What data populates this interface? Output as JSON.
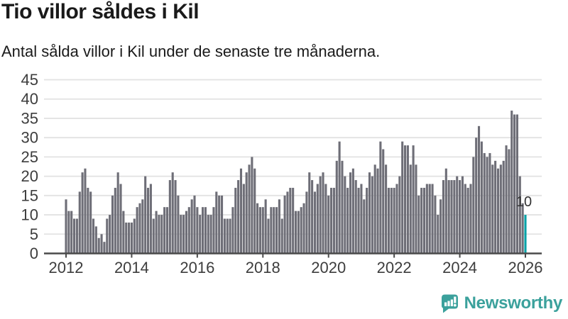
{
  "header": {
    "title": "Tio villor såldes i Kil",
    "subtitle": "Antal sålda villor i Kil under de senaste tre månaderna."
  },
  "chart_data": {
    "type": "bar",
    "title": "Tio villor såldes i Kil",
    "subtitle": "Antal sålda villor i Kil under de senaste tre månaderna.",
    "xlabel": "",
    "ylabel": "",
    "ylim": [
      0,
      45
    ],
    "grid": "horizontal",
    "x_start": "2012-01",
    "x_end": "2026-01",
    "frequency": "monthly",
    "yticks": [
      0,
      5,
      10,
      15,
      20,
      25,
      30,
      35,
      40,
      45
    ],
    "xticks": [
      "2012",
      "2014",
      "2016",
      "2018",
      "2020",
      "2022",
      "2024",
      "2026"
    ],
    "bar_color": "#6e6e77",
    "values": [
      14,
      11,
      11,
      9,
      9,
      16,
      21,
      22,
      17,
      16,
      9,
      7,
      4,
      5,
      3,
      9,
      10,
      15,
      17,
      21,
      18,
      11,
      8,
      8,
      8,
      9,
      12,
      13,
      14,
      20,
      17,
      18,
      9,
      11,
      10,
      10,
      12,
      12,
      19,
      21,
      19,
      15,
      10,
      10,
      11,
      12,
      14,
      15,
      12,
      10,
      12,
      12,
      10,
      10,
      12,
      16,
      15,
      15,
      9,
      9,
      9,
      12,
      17,
      19,
      22,
      18,
      21,
      23,
      25,
      22,
      13,
      12,
      12,
      14,
      9,
      12,
      12,
      12,
      14,
      9,
      15,
      16,
      17,
      17,
      11,
      11,
      12,
      13,
      16,
      21,
      19,
      16,
      18,
      20,
      21,
      18,
      15,
      17,
      17,
      24,
      29,
      24,
      20,
      17,
      21,
      22,
      19,
      17,
      18,
      14,
      17,
      21,
      20,
      23,
      22,
      29,
      27,
      23,
      17,
      17,
      17,
      18,
      20,
      29,
      28,
      28,
      23,
      28,
      23,
      15,
      17,
      17,
      18,
      18,
      18,
      15,
      10,
      14,
      19,
      22,
      19,
      19,
      19,
      20,
      19,
      20,
      18,
      17,
      18,
      25,
      30,
      33,
      29,
      26,
      25,
      26,
      23,
      24,
      22,
      23,
      24,
      28,
      27,
      37,
      36,
      36,
      20,
      13,
      10
    ],
    "highlight": {
      "index": 168,
      "value": 10,
      "value_label": "10",
      "color": "#00a1a5"
    },
    "axis_color": "#4a4a4a",
    "grid_color": "#e2e2e2",
    "tick_label_color": "#3d3d3d",
    "value_label_color": "#333333"
  },
  "footer": {
    "brand": "Newsworthy",
    "brand_color": "#3ba19c",
    "logo_icon": "speech-bubble-bar-chart-exclamation"
  }
}
